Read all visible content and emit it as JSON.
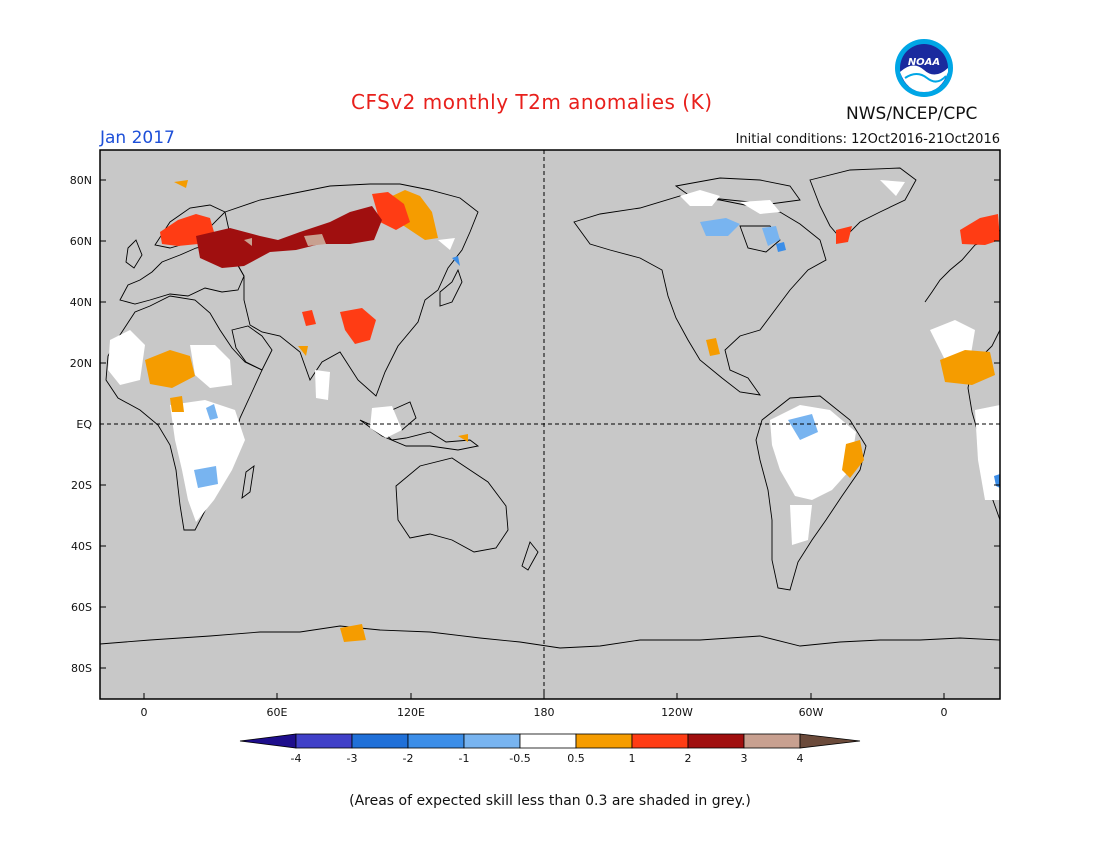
{
  "title": "CFSv2 monthly T2m anomalies (K)",
  "period": "Jan 2017",
  "initial_conditions": "Initial conditions: 12Oct2016-21Oct2016",
  "agency": "NWS/NCEP/CPC",
  "logo_text": "NOAA",
  "footnote": "(Areas of expected skill less than 0.3 are shaded in grey.)",
  "map": {
    "lat_labels": [
      "80N",
      "60N",
      "40N",
      "20N",
      "EQ",
      "20S",
      "40S",
      "60S",
      "80S"
    ],
    "lon_labels": [
      "0",
      "60E",
      "120E",
      "180",
      "120W",
      "60W",
      "0"
    ],
    "colors": {
      "ocean_land_noskill": "#c8c8c8",
      "no_anomaly": "#ffffff",
      "coast": "#000000"
    }
  },
  "legend": {
    "ticks": [
      "-4",
      "-3",
      "-2",
      "-1",
      "-0.5",
      "0.5",
      "1",
      "2",
      "3",
      "4"
    ],
    "colors": [
      "#1e0e8c",
      "#4040c8",
      "#2070d8",
      "#3c8ee8",
      "#78b4f0",
      "#ffffff",
      "#f59c00",
      "#ff3c14",
      "#a00f0f",
      "#c8a090",
      "#6b4a3a"
    ]
  }
}
